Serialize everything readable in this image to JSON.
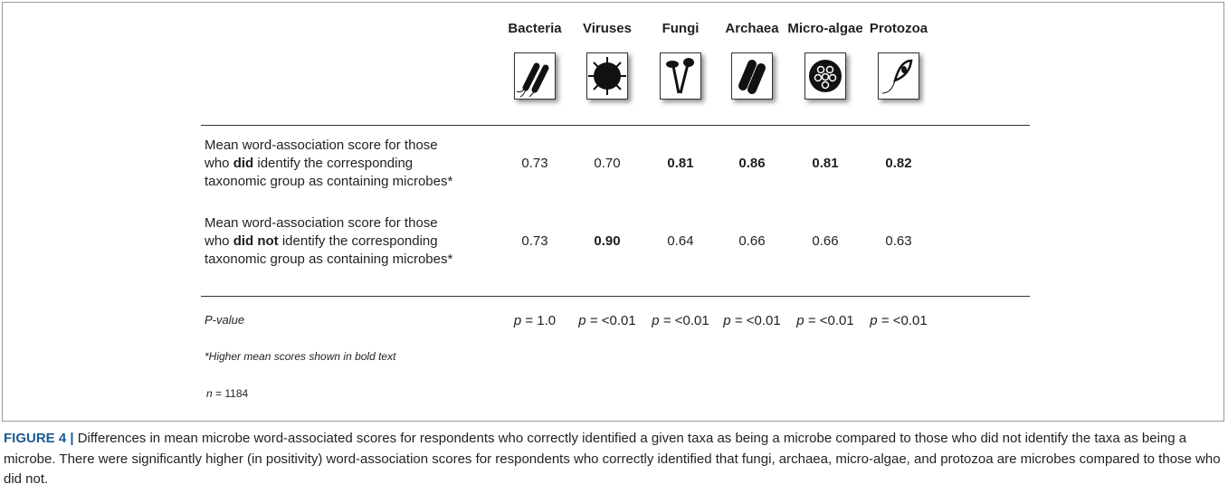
{
  "table": {
    "columns": [
      "Bacteria",
      "Viruses",
      "Fungi",
      "Archaea",
      "Micro-algae",
      "Protozoa"
    ],
    "rows": [
      {
        "label": [
          "Mean word-association score for those",
          {
            "before": "who ",
            "bold": "did",
            "after": " identify the corresponding"
          },
          "taxonomic group as containing microbes*"
        ],
        "values": [
          "0.73",
          "0.70",
          "0.81",
          "0.86",
          "0.81",
          "0.82"
        ],
        "bold": [
          false,
          false,
          true,
          true,
          true,
          true
        ]
      },
      {
        "label": [
          "Mean word-association score for those",
          {
            "before": "who ",
            "bold": "did not",
            "after": " identify the corresponding"
          },
          "taxonomic group as containing microbes*"
        ],
        "values": [
          "0.73",
          "0.90",
          "0.64",
          "0.66",
          "0.66",
          "0.63"
        ],
        "bold": [
          false,
          true,
          false,
          false,
          false,
          false
        ]
      }
    ],
    "pvalue_label": "P-value",
    "p_symbol": "p",
    "pvalues": [
      "= 1.0",
      "= <0.01",
      "= <0.01",
      "= <0.01",
      "= <0.01",
      "= <0.01"
    ],
    "footnote": "*Higher mean scores shown in bold text",
    "n_symbol": "n",
    "n_value": "= 1184"
  },
  "caption": {
    "label": "FIGURE 4 |",
    "text": "Differences in mean microbe word-associated scores for respondents who correctly identified a given taxa as being a microbe compared to those who did not identify the taxa as being a microbe. There were significantly higher (in positivity) word-association scores for respondents who correctly identified that fungi, archaea, micro-algae, and protozoa are microbes compared to those who did not."
  }
}
